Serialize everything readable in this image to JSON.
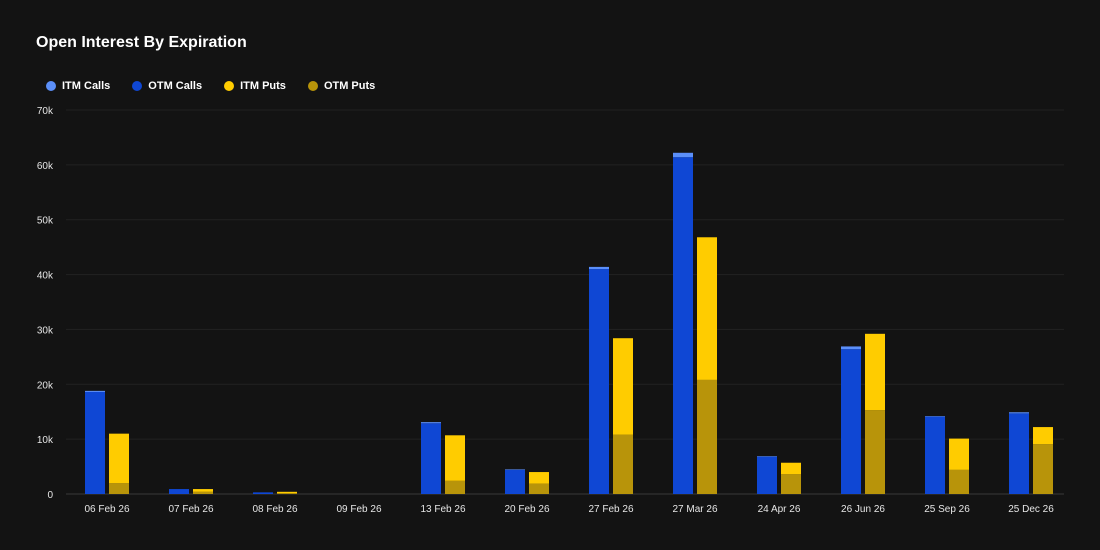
{
  "chart_data": {
    "type": "bar",
    "title": "Open Interest By Expiration",
    "xlabel": "",
    "ylabel": "",
    "ylim": [
      0,
      70000
    ],
    "yticks": [
      0,
      10000,
      20000,
      30000,
      40000,
      50000,
      60000,
      70000
    ],
    "ytick_labels": [
      "0",
      "10k",
      "20k",
      "30k",
      "40k",
      "50k",
      "60k",
      "70k"
    ],
    "grid": true,
    "legend_position": "top-left",
    "categories": [
      "06 Feb 26",
      "07 Feb 26",
      "08 Feb 26",
      "09 Feb 26",
      "13 Feb 26",
      "20 Feb 26",
      "27 Feb 26",
      "27 Mar 26",
      "24 Apr 26",
      "26 Jun 26",
      "25 Sep 26",
      "25 Dec 26"
    ],
    "series": [
      {
        "name": "ITM Calls",
        "color": "#5b8ff9",
        "stack": "calls",
        "values": [
          200,
          0,
          0,
          0,
          200,
          100,
          400,
          800,
          100,
          500,
          100,
          200
        ]
      },
      {
        "name": "OTM Calls",
        "color": "#0f47d4",
        "stack": "calls",
        "values": [
          18600,
          900,
          300,
          0,
          12900,
          4400,
          41000,
          61400,
          6800,
          26400,
          14100,
          14700
        ]
      },
      {
        "name": "ITM Puts",
        "color": "#ffcc00",
        "stack": "puts",
        "values": [
          9000,
          500,
          250,
          0,
          8300,
          2100,
          17600,
          26000,
          2100,
          13900,
          5700,
          3100
        ]
      },
      {
        "name": "OTM Puts",
        "color": "#b8940a",
        "stack": "puts",
        "values": [
          2000,
          400,
          150,
          0,
          2400,
          1900,
          10800,
          20800,
          3600,
          15300,
          4400,
          9100
        ]
      }
    ]
  }
}
